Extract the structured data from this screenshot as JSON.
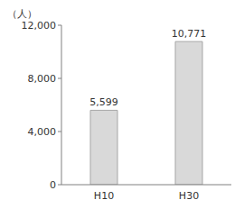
{
  "chart_data": {
    "type": "bar",
    "ylabel": "（人）",
    "categories": [
      "H10",
      "H30"
    ],
    "values": [
      5599,
      10771
    ],
    "value_labels": [
      "5,599",
      "10,771"
    ],
    "color": "#d9d9d9",
    "ylim": [
      0,
      12000
    ],
    "yticks": [
      0,
      {
        "value": 4000,
        "label": "4,000"
      },
      {
        "value": 8000,
        "label": "8,000"
      },
      {
        "value": 12000,
        "label": "12,000"
      }
    ],
    "grid": false,
    "data_labels": true
  }
}
